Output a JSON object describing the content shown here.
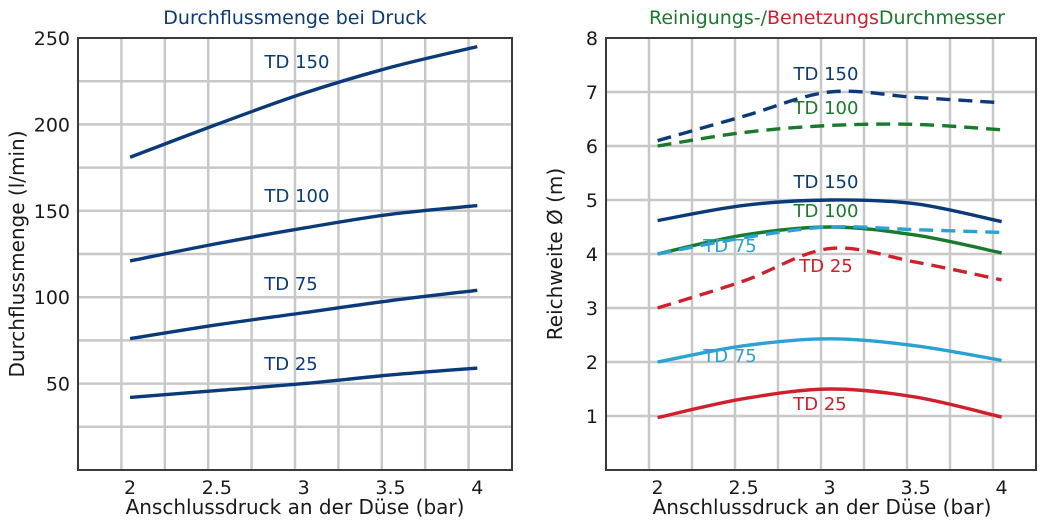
{
  "chart_data": [
    {
      "type": "line",
      "title": "Durchflussmenge bei Druck",
      "title_color": "#0a3a7a",
      "xlabel": "Anschlussdruck an der Düse (bar)",
      "ylabel": "Durchflussmenge (l/min)",
      "xlim": [
        1.7,
        4.2
      ],
      "ylim": [
        0,
        250
      ],
      "x_ticks": [
        "2",
        "2.5",
        "3",
        "3.5",
        "4"
      ],
      "y_ticks": [
        "50",
        "100",
        "150",
        "200",
        "250"
      ],
      "grid": true,
      "series": [
        {
          "name": "TD 150",
          "color": "#0b3a7a",
          "dashed": false,
          "x": [
            2,
            2.5,
            3,
            3.5,
            4
          ],
          "y": [
            181,
            200,
            218,
            233,
            245
          ]
        },
        {
          "name": "TD 100",
          "color": "#0b3a7a",
          "dashed": false,
          "x": [
            2,
            2.5,
            3,
            3.5,
            4
          ],
          "y": [
            121,
            131,
            140,
            148,
            153
          ]
        },
        {
          "name": "TD 75",
          "color": "#0b3a7a",
          "dashed": false,
          "x": [
            2,
            2.5,
            3,
            3.5,
            4
          ],
          "y": [
            76,
            84,
            91,
            98,
            104
          ]
        },
        {
          "name": "TD 25",
          "color": "#0b3a7a",
          "dashed": false,
          "x": [
            2,
            2.5,
            3,
            3.5,
            4
          ],
          "y": [
            42,
            46,
            50,
            55,
            59
          ]
        }
      ]
    },
    {
      "type": "line",
      "title_parts": [
        {
          "text": "Reinigungs-/",
          "color": "#1a7a2c"
        },
        {
          "text": "Benetzungs",
          "color": "#d0202e"
        },
        {
          "text": "Durchmesser",
          "color": "#1a7a2c"
        }
      ],
      "xlabel": "Anschlussdruck an der Düse (bar)",
      "ylabel": "Reichweite Ø (m)",
      "xlim": [
        1.7,
        4.2
      ],
      "ylim": [
        0,
        8
      ],
      "x_ticks": [
        "2",
        "2.5",
        "3",
        "3.5",
        "4"
      ],
      "y_ticks": [
        "1",
        "2",
        "3",
        "4",
        "5",
        "6",
        "7",
        "8"
      ],
      "grid": true,
      "series": [
        {
          "name": "TD 150",
          "color": "#0b3a7a",
          "dashed": true,
          "x": [
            2,
            2.5,
            3,
            3.5,
            4
          ],
          "y": [
            6.1,
            6.55,
            7.0,
            6.9,
            6.8
          ]
        },
        {
          "name": "TD 100",
          "color": "#1a7a2c",
          "dashed": true,
          "x": [
            2,
            2.5,
            3,
            3.5,
            4
          ],
          "y": [
            6.0,
            6.25,
            6.38,
            6.4,
            6.3
          ]
        },
        {
          "name": "TD 150",
          "color": "#0b3a7a",
          "dashed": false,
          "x": [
            2,
            2.5,
            3,
            3.5,
            4
          ],
          "y": [
            4.62,
            4.9,
            5.0,
            4.93,
            4.6
          ]
        },
        {
          "name": "TD 100",
          "color": "#1a7a2c",
          "dashed": false,
          "x": [
            2,
            2.5,
            3,
            3.5,
            4
          ],
          "y": [
            4.0,
            4.35,
            4.5,
            4.35,
            4.02
          ]
        },
        {
          "name": "TD 75",
          "color": "#2aa3d4",
          "dashed": true,
          "x": [
            2,
            2.5,
            3,
            3.5,
            4
          ],
          "y": [
            4.0,
            4.3,
            4.5,
            4.45,
            4.4
          ]
        },
        {
          "name": "TD 25",
          "color": "#d0202e",
          "dashed": true,
          "x": [
            2,
            2.5,
            3,
            3.5,
            4
          ],
          "y": [
            3.0,
            3.5,
            4.1,
            3.85,
            3.52
          ]
        },
        {
          "name": "TD 75",
          "color": "#2aa3d4",
          "dashed": false,
          "x": [
            2,
            2.5,
            3,
            3.5,
            4
          ],
          "y": [
            2.0,
            2.3,
            2.43,
            2.3,
            2.03
          ]
        },
        {
          "name": "TD 25",
          "color": "#d0202e",
          "dashed": false,
          "x": [
            2,
            2.5,
            3,
            3.5,
            4
          ],
          "y": [
            0.97,
            1.32,
            1.5,
            1.35,
            0.98
          ]
        }
      ]
    }
  ]
}
